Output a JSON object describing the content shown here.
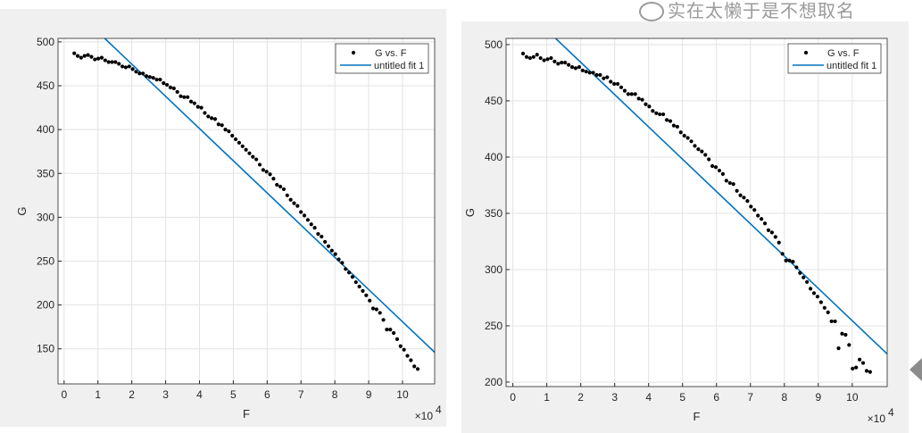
{
  "watermark": "实在太懒于是不想取名",
  "colors": {
    "fit": "#0072BD",
    "points": "#000000",
    "panel": "#f0f0f0",
    "grid": "#e3e3e3"
  },
  "chart_data": [
    {
      "type": "scatter",
      "xlabel": "F",
      "ylabel": "G",
      "x_exponent_label": "×10",
      "x_exponent": "4",
      "xlim": [
        -0.18,
        10.95
      ],
      "ylim": [
        110,
        504
      ],
      "xticks": [
        "0",
        "1",
        "2",
        "3",
        "4",
        "5",
        "6",
        "7",
        "8",
        "9",
        "10"
      ],
      "yticks": [
        "150",
        "200",
        "250",
        "300",
        "350",
        "400",
        "450",
        "500"
      ],
      "grid": true,
      "legend_position": "top-right",
      "legend": [
        "G vs. F",
        "untitled fit 1"
      ],
      "series": [
        {
          "name": "G vs. F",
          "x_start": 0.3,
          "x_step": 0.1015,
          "y": [
            487,
            484,
            482,
            484,
            485,
            483,
            480,
            481,
            482,
            479,
            477,
            477,
            477,
            475,
            472,
            471,
            472,
            469,
            466,
            464,
            464,
            461,
            460,
            459,
            457,
            457,
            453,
            451,
            448,
            447,
            443,
            438,
            437,
            437,
            432,
            430,
            426,
            425,
            419,
            415,
            413,
            412,
            406,
            405,
            400,
            398,
            393,
            389,
            385,
            381,
            377,
            373,
            369,
            366,
            360,
            354,
            352,
            349,
            344,
            337,
            335,
            332,
            325,
            320,
            316,
            313,
            306,
            302,
            297,
            292,
            288,
            281,
            278,
            272,
            267,
            262,
            258,
            252,
            248,
            241,
            237,
            232,
            226,
            221,
            216,
            211,
            205,
            196,
            195,
            191,
            183,
            172,
            172,
            168,
            161,
            153,
            149,
            142,
            137,
            130,
            127
          ]
        },
        {
          "name": "untitled fit 1",
          "type": "line",
          "x": [
            1.2,
            10.95
          ],
          "y": [
            504,
            146
          ]
        }
      ]
    },
    {
      "type": "scatter",
      "xlabel": "F",
      "ylabel": "G",
      "x_exponent_label": "×10",
      "x_exponent": "4",
      "xlim": [
        -0.2,
        11.03
      ],
      "ylim": [
        196,
        505.5
      ],
      "xticks": [
        "0",
        "1",
        "2",
        "3",
        "4",
        "5",
        "6",
        "7",
        "8",
        "9",
        "10"
      ],
      "yticks": [
        "200",
        "250",
        "300",
        "350",
        "400",
        "450",
        "500"
      ],
      "grid": true,
      "legend_position": "top-right",
      "legend": [
        "G vs. F",
        "untitled fit 1"
      ],
      "series": [
        {
          "name": "G vs. F",
          "x_start": 0.3,
          "x_step": 0.1033,
          "y": [
            492,
            489,
            488,
            489,
            491,
            488,
            486,
            487,
            488,
            485,
            483,
            484,
            484,
            482,
            480,
            479,
            480,
            477,
            476,
            475,
            475,
            473,
            473,
            470,
            471,
            467,
            465,
            465,
            462,
            459,
            456,
            456,
            456,
            452,
            451,
            447,
            445,
            441,
            439,
            438,
            438,
            433,
            432,
            428,
            427,
            422,
            419,
            417,
            414,
            410,
            407,
            405,
            402,
            398,
            392,
            391,
            388,
            385,
            379,
            377,
            376,
            370,
            366,
            364,
            361,
            356,
            353,
            348,
            345,
            341,
            335,
            333,
            329,
            324,
            314,
            308,
            308,
            307,
            302,
            297,
            293,
            289,
            283,
            279,
            276,
            271,
            266,
            262,
            254,
            254,
            230,
            243,
            242,
            233,
            212,
            213,
            220,
            217,
            210,
            209
          ]
        },
        {
          "name": "untitled fit 1",
          "type": "line",
          "x": [
            1.26,
            11.03
          ],
          "y": [
            505.5,
            225
          ]
        }
      ]
    }
  ]
}
